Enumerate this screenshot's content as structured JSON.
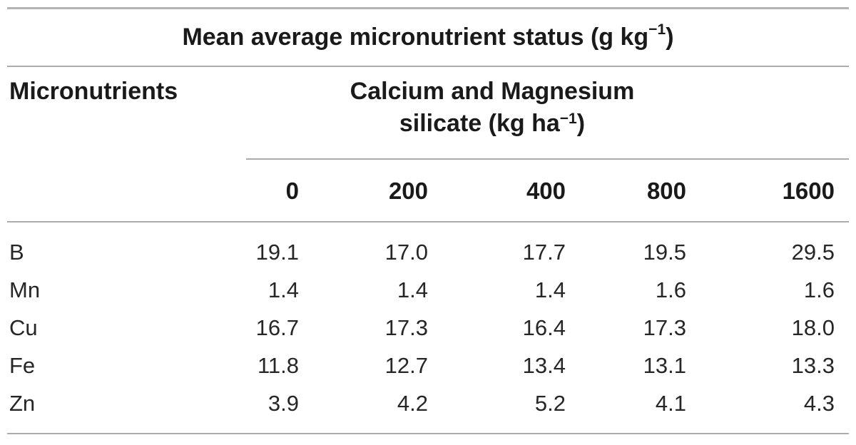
{
  "colors": {
    "rule_gray": "#acacac",
    "heading_text": "#1a1a1a",
    "body_text": "#262626"
  },
  "table": {
    "title": {
      "prefix": "Mean average micronutrient status (g kg",
      "superscript": "−1",
      "suffix": ")"
    },
    "row_header": "Micronutrients",
    "group_header": {
      "line1": "Calcium and Magnesium",
      "line2_prefix": "silicate (kg ha",
      "line2_superscript": "−1",
      "line2_suffix": ")"
    },
    "column_headers": [
      "0",
      "200",
      "400",
      "800",
      "1600"
    ],
    "rows": [
      {
        "label": "B",
        "values": [
          "19.1",
          "17.0",
          "17.7",
          "19.5",
          "29.5"
        ]
      },
      {
        "label": "Mn",
        "values": [
          "1.4",
          "1.4",
          "1.4",
          "1.6",
          "1.6"
        ]
      },
      {
        "label": "Cu",
        "values": [
          "16.7",
          "17.3",
          "16.4",
          "17.3",
          "18.0"
        ]
      },
      {
        "label": "Fe",
        "values": [
          "11.8",
          "12.7",
          "13.4",
          "13.1",
          "13.3"
        ]
      },
      {
        "label": "Zn",
        "values": [
          "3.9",
          "4.2",
          "5.2",
          "4.1",
          "4.3"
        ]
      }
    ]
  }
}
